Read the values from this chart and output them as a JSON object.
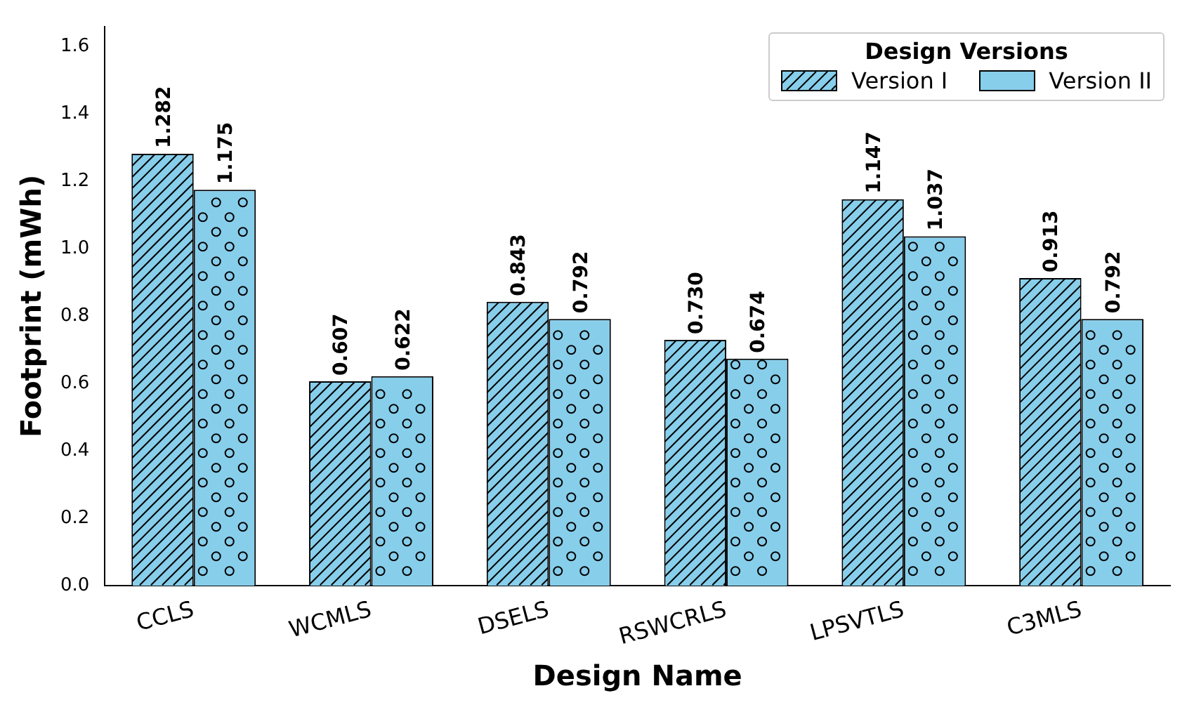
{
  "chart_data": {
    "type": "bar",
    "xlabel": "Design Name",
    "ylabel": "Footprint (mWh)",
    "legend_title": "Design Versions",
    "categories": [
      "CCLS",
      "WCMLS",
      "DSELS",
      "RSWCRLS",
      "LPSVTLS",
      "C3MLS"
    ],
    "series": [
      {
        "name": "Version I",
        "color": "#87ceeb",
        "values": [
          1.282,
          0.607,
          0.843,
          0.73,
          1.147,
          0.913
        ],
        "value_labels": [
          "1.282",
          "0.607",
          "0.843",
          "0.730",
          "1.147",
          "0.913"
        ]
      },
      {
        "name": "Version II",
        "color": "#87ceeb",
        "values": [
          1.175,
          0.622,
          0.792,
          0.674,
          1.037,
          0.792
        ],
        "value_labels": [
          "1.175",
          "0.622",
          "0.792",
          "0.674",
          "1.037",
          "0.792"
        ]
      }
    ],
    "ylim": [
      0,
      1.66
    ],
    "yticks": [
      {
        "value": 0,
        "label": "0.0"
      },
      0.2,
      0.4,
      0.6,
      0.8,
      {
        "value": 1,
        "label": "1.0"
      },
      1.2,
      1.4,
      1.6
    ],
    "grid": false,
    "legend": "top right",
    "data_labels": false
  }
}
